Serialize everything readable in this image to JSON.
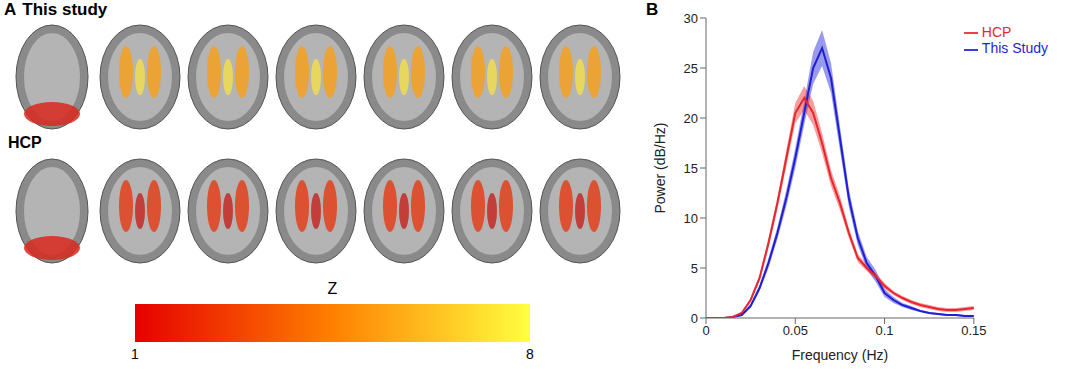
{
  "figure": {
    "panel_labels": [
      "A",
      "B"
    ]
  },
  "panel_a": {
    "rows": [
      "This study",
      "HCP"
    ],
    "colorbar": {
      "title": "Z",
      "range": [
        1,
        8
      ],
      "ticks": [
        1,
        8
      ]
    }
  },
  "chart_data": {
    "type": "line",
    "x_label": "Frequency (Hz)",
    "y_label": "Power (dB/Hz)",
    "x": [
      0,
      0.005,
      0.01,
      0.015,
      0.02,
      0.025,
      0.03,
      0.035,
      0.04,
      0.045,
      0.05,
      0.055,
      0.06,
      0.065,
      0.07,
      0.075,
      0.08,
      0.085,
      0.09,
      0.095,
      0.1,
      0.105,
      0.11,
      0.115,
      0.12,
      0.125,
      0.13,
      0.135,
      0.14,
      0.145,
      0.15
    ],
    "series": [
      {
        "name": "This Study",
        "color": "#1f1fd6",
        "values": [
          0,
          0,
          0,
          0.1,
          0.3,
          1.2,
          3,
          5.5,
          8.5,
          12,
          16,
          20.5,
          25,
          27,
          24,
          18,
          12,
          8,
          5.5,
          4.2,
          2.5,
          1.8,
          1.3,
          1.0,
          0.7,
          0.5,
          0.4,
          0.3,
          0.3,
          0.2,
          0.2
        ],
        "error": [
          0,
          0,
          0,
          0,
          0.1,
          0.2,
          0.3,
          0.5,
          0.6,
          0.8,
          1.0,
          1.2,
          1.6,
          1.8,
          1.5,
          1.2,
          0.9,
          0.7,
          0.6,
          0.6,
          0.4,
          0.3,
          0.2,
          0.2,
          0.1,
          0.1,
          0.1,
          0.1,
          0.1,
          0.1,
          0.1
        ]
      },
      {
        "name": "HCP",
        "color": "#e8262b",
        "values": [
          0,
          0,
          0,
          0.1,
          0.5,
          1.8,
          4,
          7.5,
          11.5,
          16,
          20.5,
          22,
          20.5,
          17.5,
          14,
          11.5,
          8.5,
          6,
          5,
          4.2,
          3.2,
          2.5,
          2,
          1.6,
          1.3,
          1.1,
          0.9,
          0.8,
          0.8,
          0.9,
          1.0
        ],
        "error": [
          0,
          0,
          0,
          0,
          0.1,
          0.2,
          0.3,
          0.5,
          0.6,
          0.8,
          1.0,
          1.2,
          1.2,
          1.0,
          0.8,
          0.7,
          0.5,
          0.4,
          0.3,
          0.3,
          0.3,
          0.2,
          0.2,
          0.2,
          0.2,
          0.2,
          0.2,
          0.2,
          0.2,
          0.2,
          0.2
        ]
      }
    ],
    "xlim": [
      0,
      0.15
    ],
    "xticks": [
      0,
      0.05,
      0.1,
      0.15
    ],
    "ylim": [
      0,
      30
    ],
    "yticks": [
      0,
      5,
      10,
      15,
      20,
      25,
      30
    ],
    "legend": "upper right",
    "grid": false
  }
}
